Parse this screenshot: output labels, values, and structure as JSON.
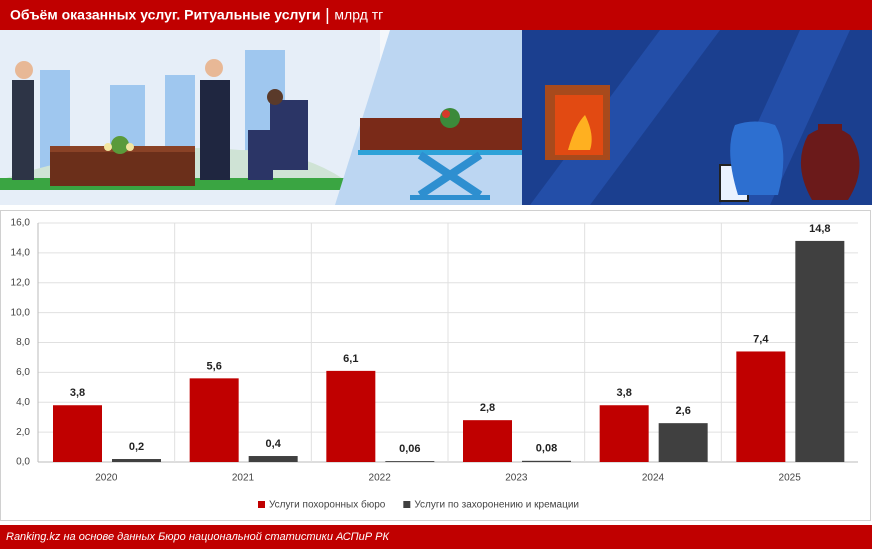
{
  "chart_data": {
    "type": "bar",
    "title": "Объём оказанных услуг. Ритуальные услуги",
    "unit": "млрд тг",
    "source": "Ranking.kz на основе данных Бюро национальной статистики АСПиР РК",
    "categories": [
      "2020",
      "2021",
      "2022",
      "2023",
      "2024",
      "2025"
    ],
    "series": [
      {
        "name": "Услуги похоронных бюро",
        "color": "#c00000",
        "values": [
          3.8,
          5.6,
          6.1,
          2.8,
          3.8,
          7.4
        ],
        "value_labels": [
          "3,8",
          "5,6",
          "6,1",
          "2,8",
          "3,8",
          "7,4"
        ]
      },
      {
        "name": "Услуги по захоронению и кремации",
        "color": "#404040",
        "values": [
          0.2,
          0.4,
          0.06,
          0.08,
          2.6,
          14.8
        ],
        "value_labels": [
          "0,2",
          "0,4",
          "0,06",
          "0,08",
          "2,6",
          "14,8"
        ]
      }
    ],
    "ylim": [
      0,
      16
    ],
    "yticks": [
      {
        "value": 0,
        "label": "0,0"
      },
      {
        "value": 2,
        "label": "2,0"
      },
      {
        "value": 4,
        "label": "4,0"
      },
      {
        "value": 6,
        "label": "6,0"
      },
      {
        "value": 8,
        "label": "8,0"
      },
      {
        "value": 10,
        "label": "10,0"
      },
      {
        "value": 12,
        "label": "12,0"
      },
      {
        "value": 14,
        "label": "14,0"
      },
      {
        "value": 16,
        "label": "16,0"
      }
    ],
    "grid": true,
    "legend": "bottom"
  }
}
